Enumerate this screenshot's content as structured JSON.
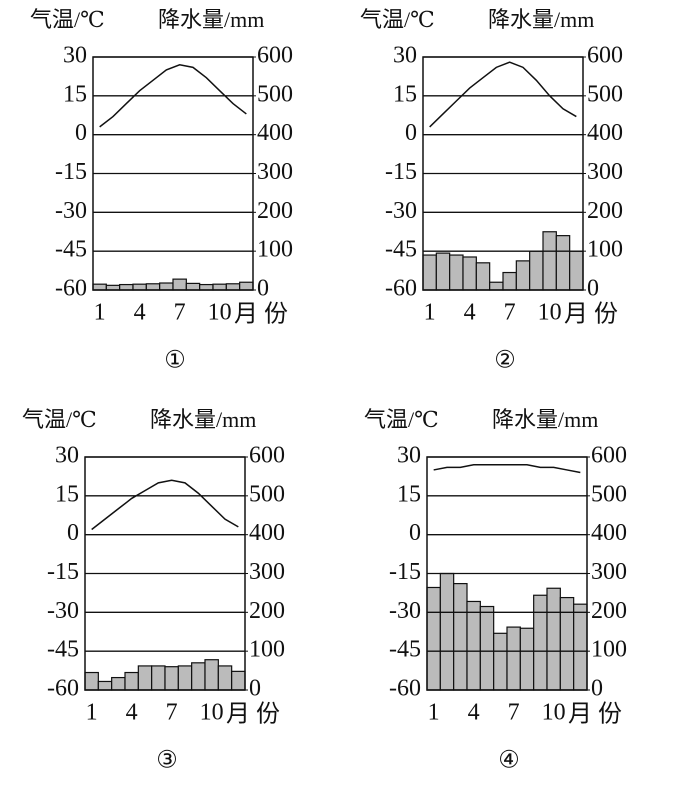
{
  "chart_data": [
    {
      "type": "combo",
      "y_label": "气温/℃",
      "y2_label": "降水量/mm",
      "x_label": "月份",
      "caption": "①",
      "categories": [
        "1",
        null,
        null,
        "4",
        null,
        null,
        "7",
        null,
        null,
        "10",
        null,
        null
      ],
      "ylim": [
        -60,
        30
      ],
      "yticks": [
        30,
        15,
        0,
        -15,
        -30,
        -45,
        -60
      ],
      "y2lim": [
        0,
        600
      ],
      "y2ticks": [
        600,
        500,
        400,
        300,
        200,
        100,
        0
      ],
      "grid": true,
      "series": [
        {
          "type": "bar",
          "axis": "y2",
          "color": "#bbbbbb",
          "values": [
            15,
            12,
            14,
            15,
            16,
            18,
            28,
            17,
            14,
            15,
            16,
            20
          ]
        },
        {
          "type": "line",
          "axis": "y",
          "color": "#111111",
          "values": [
            3,
            7,
            12,
            17,
            21,
            25,
            27,
            26,
            22,
            17,
            12,
            8
          ]
        }
      ]
    },
    {
      "type": "combo",
      "y_label": "气温/℃",
      "y2_label": "降水量/mm",
      "x_label": "月份",
      "caption": "②",
      "categories": [
        "1",
        null,
        null,
        "4",
        null,
        null,
        "7",
        null,
        null,
        "10",
        null,
        null
      ],
      "ylim": [
        -60,
        30
      ],
      "yticks": [
        30,
        15,
        0,
        -15,
        -30,
        -45,
        -60
      ],
      "y2lim": [
        0,
        600
      ],
      "y2ticks": [
        600,
        500,
        400,
        300,
        200,
        100,
        0
      ],
      "grid": true,
      "series": [
        {
          "type": "bar",
          "axis": "y2",
          "color": "#bbbbbb",
          "values": [
            90,
            95,
            90,
            85,
            70,
            20,
            45,
            75,
            100,
            150,
            140,
            100
          ]
        },
        {
          "type": "line",
          "axis": "y",
          "color": "#111111",
          "values": [
            3,
            8,
            13,
            18,
            22,
            26,
            28,
            26,
            21,
            15,
            10,
            7
          ]
        }
      ]
    },
    {
      "type": "combo",
      "y_label": "气温/℃",
      "y2_label": "降水量/mm",
      "x_label": "月份",
      "caption": "③",
      "categories": [
        "1",
        null,
        null,
        "4",
        null,
        null,
        "7",
        null,
        null,
        "10",
        null,
        null
      ],
      "ylim": [
        -60,
        30
      ],
      "yticks": [
        30,
        15,
        0,
        -15,
        -30,
        -45,
        -60
      ],
      "y2lim": [
        0,
        600
      ],
      "y2ticks": [
        600,
        500,
        400,
        300,
        200,
        100,
        0
      ],
      "grid": true,
      "series": [
        {
          "type": "bar",
          "axis": "y2",
          "color": "#bbbbbb",
          "values": [
            45,
            22,
            32,
            45,
            62,
            62,
            60,
            62,
            70,
            78,
            62,
            48
          ]
        },
        {
          "type": "line",
          "axis": "y",
          "color": "#111111",
          "values": [
            2,
            6,
            10,
            14,
            17,
            20,
            21,
            20,
            16,
            11,
            6,
            3
          ]
        }
      ]
    },
    {
      "type": "combo",
      "y_label": "气温/℃",
      "y2_label": "降水量/mm",
      "x_label": "月份",
      "caption": "④",
      "categories": [
        "1",
        null,
        null,
        "4",
        null,
        null,
        "7",
        null,
        null,
        "10",
        null,
        null
      ],
      "ylim": [
        -60,
        30
      ],
      "yticks": [
        30,
        15,
        0,
        -15,
        -30,
        -45,
        -60
      ],
      "y2lim": [
        0,
        600
      ],
      "y2ticks": [
        600,
        500,
        400,
        300,
        200,
        100,
        0
      ],
      "grid": true,
      "series": [
        {
          "type": "bar",
          "axis": "y2",
          "color": "#bbbbbb",
          "values": [
            264,
            300,
            274,
            228,
            215,
            146,
            162,
            159,
            244,
            262,
            238,
            221
          ]
        },
        {
          "type": "line",
          "axis": "y",
          "color": "#111111",
          "values": [
            25,
            26,
            26,
            27,
            27,
            27,
            27,
            27,
            26,
            26,
            25,
            24
          ]
        }
      ]
    }
  ]
}
